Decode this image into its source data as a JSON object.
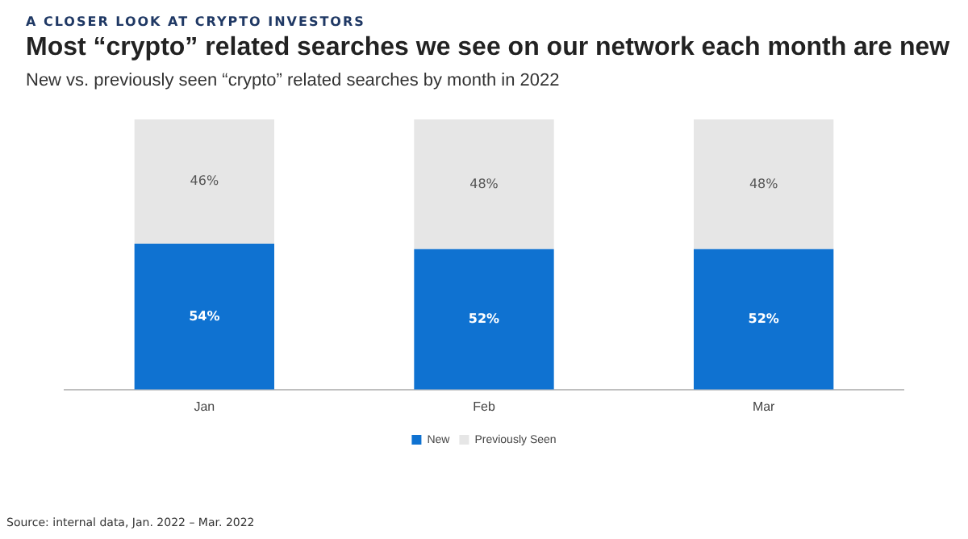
{
  "chart_data": {
    "type": "bar",
    "title": "Most “crypto” related searches we see on our network each month are new",
    "subtitle": "New vs. previously seen “crypto” related searches by month in 2022",
    "annotations": [
      "A CLOSER LOOK AT CRYPTO INVESTORS",
      "Source: internal data, Jan. 2022 – Mar. 2022"
    ],
    "categories": [
      "Jan",
      "Feb",
      "Mar"
    ],
    "stacked": true,
    "legend": "bottom",
    "grid": false,
    "series": [
      {
        "name": "New",
        "color": "#0f72d1",
        "values": [
          54,
          52,
          52
        ],
        "value_labels": [
          "54%",
          "52%",
          "52%"
        ]
      },
      {
        "name": "Previously Seen",
        "color": "#e6e6e6",
        "values": [
          46,
          48,
          48
        ],
        "value_labels": [
          "46%",
          "48%",
          "48%"
        ]
      }
    ]
  }
}
